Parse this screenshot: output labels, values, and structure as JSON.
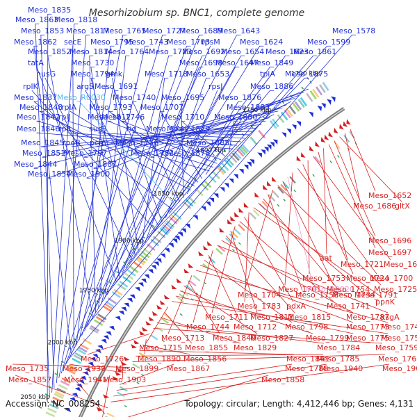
{
  "title": "Mesorhizobium sp. BNC1, complete genome",
  "footer": {
    "accession": "Accession: NC_008254",
    "summary": "Topology: circular; Length: 4,412,446 bp; Genes: 4,131"
  },
  "colors": {
    "forward": "#1f2fd6",
    "reverse": "#d61f1f",
    "rna_forward": "#54b8f0",
    "rna_reverse": "#f39ad6",
    "backbone": "#888888",
    "marker": "#2fa84f"
  },
  "kbp_ticks": [
    "1700 kbp",
    "1750 kbp",
    "1800 kbp",
    "1850 kbp",
    "1900 kbp",
    "1950 kbp",
    "2000 kbp",
    "2050 kbp"
  ],
  "forward_labels": [
    "Meso_1835",
    "Meso_1863",
    "Meso_1818",
    "Meso_1853",
    "Meso_1817",
    "Meso_1765",
    "Meso_1727",
    "Meso_1689",
    "Meso_1643",
    "Meso_1578",
    "Meso_1862",
    "secE",
    "Meso_1795",
    "Meso_1743",
    "Meso_1703",
    "rpsM",
    "Meso_1624",
    "Meso_1599",
    "Meso_1852",
    "Meso_1814",
    "Meso_1764",
    "Meso_1723",
    "Meso_1692",
    "Meso_1654",
    "Meso_1623",
    "Meso_1861",
    "tatA",
    "Meso_1730",
    "Meso_1698",
    "Meso_1647",
    "Meso_1849",
    "nusG",
    "Meso_1794",
    "gmk",
    "Meso_1718",
    "Meso_1653",
    "tpiA",
    "Meso_1875",
    "rplK",
    "argS",
    "Meso_1691",
    "rpsJ",
    "Meso_1886",
    "Meso_1837",
    "Meso_R0030",
    "Meso_1740",
    "Meso_1695",
    "Meso_1876",
    "Meso_1848",
    "rplA",
    "Meso_1793",
    "Meso_1707",
    "Meso_1883",
    "Meso_1847",
    "rplJ",
    "Meso_1812",
    "Meso_1746",
    "Meso_1710",
    "Meso_1880",
    "Meso_1846",
    "rplL",
    "surE",
    "tig",
    "Meso_1742",
    "Meso_1879",
    "Meso_1845",
    "rpoB",
    "pcm",
    "Meso_1756",
    "Meso_1885",
    "Meso_1851",
    "Meso_1797",
    "Meso_1782",
    "Meso_1878",
    "Meso_1844",
    "Meso_1887",
    "Meso_1854",
    "Meso_1900"
  ],
  "reverse_labels": [
    "Meso_1652",
    "Meso_1686",
    "gltX",
    "Meso_1696",
    "Meso_1697",
    "aat",
    "Meso_1721",
    "Meso_1699",
    "Meso_1753",
    "Meso_1724",
    "Meso_1700",
    "Meso_1701",
    "Meso_R0020",
    "Meso_1754",
    "Meso_1725",
    "Meso_1704",
    "Meso_1758",
    "Meso_1734",
    "Meso_1791",
    "ppnK",
    "Meso_1783",
    "pdxA",
    "Meso_1741",
    "Meso_1711",
    "Meso_1811",
    "Meso_1815",
    "Meso_1787",
    "ksgA",
    "Meso_1744",
    "Meso_1712",
    "Meso_1798",
    "Meso_1773",
    "Meso_1745",
    "Meso_1713",
    "Meso_1840",
    "Meso_1827",
    "Meso_1799",
    "Meso_1775",
    "Meso_1757",
    "Meso_1715",
    "Meso_1855",
    "Meso_1829",
    "Meso_1784",
    "Meso_1759",
    "Meso_1726",
    "Meso_1890",
    "Meso_1856",
    "Meso_1841",
    "Meso_1785",
    "Meso_1760",
    "Meso_1735",
    "Meso_1939",
    "Meso_1899",
    "Meso_1867",
    "Meso_1788",
    "Meso_1940",
    "Meso_1901",
    "Meso_1857",
    "Meso_1941",
    "Meso_1903",
    "Meso_1858"
  ]
}
